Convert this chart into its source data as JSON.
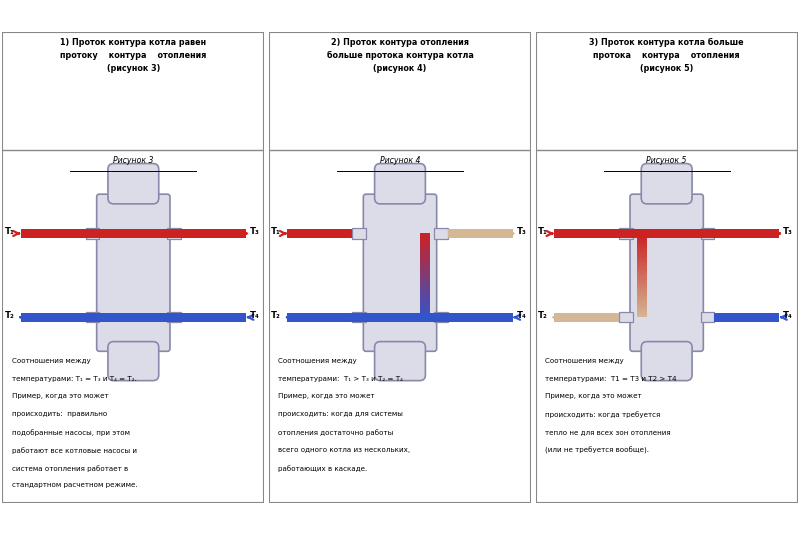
{
  "title1": "1) Проток контура котла равен\nпротоку    контура    отопления\n(рисунок 3)",
  "title2": "2) Проток контура отопления\nбольше протока контура котла\n(рисунок 4)",
  "title3": "3) Проток контура котла больше\nпротока    контура    отопления\n(рисунок 5)",
  "fig3_label": "Рисунок 3",
  "fig4_label": "Рисунок 4",
  "fig5_label": "Рисунок 5",
  "desc1_lines": [
    "Соотношения между",
    "температурами: Т₁ = Т₃ и Т₄ = Т₂.",
    "Пример, когда это может",
    "происходить:  правильно",
    "подобранные насосы, при этом",
    "работают все котловые насосы и",
    "система отопления работает в",
    "стандартном расчетном режиме."
  ],
  "desc2_lines": [
    "Соотношения между",
    "температурами:  Т₁ > Т₃ и Т₂ = Т₄",
    "Пример, когда это может",
    "происходить: когда для системы",
    "отопления достаточно работы",
    "всего одного котла из нескольких,",
    "работающих в каскаде."
  ],
  "desc3_lines": [
    "Соотношения между",
    "температурами:  Т1 = Т3 и Т2 > Т4",
    "Пример, когда это может",
    "происходить: когда требуется",
    "тепло не для всех зон отопления",
    "(или не требуется вообще)."
  ],
  "red": "#CC2222",
  "blue": "#3355CC",
  "beige": "#D4B896",
  "sep_fill": "#DCDCE8",
  "sep_edge": "#8888AA",
  "bg": "#FFFFFF",
  "border": "#888888",
  "text": "#000000"
}
